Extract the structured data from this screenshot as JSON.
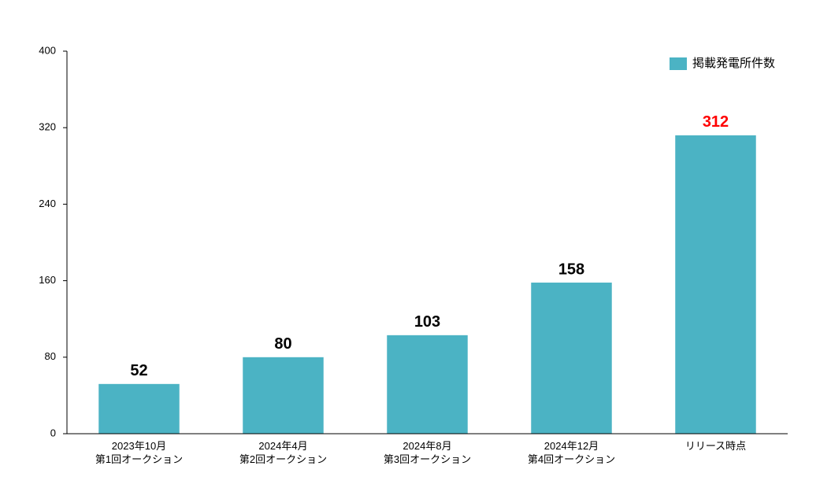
{
  "chart_data": {
    "type": "bar",
    "categories": [
      "2023年10月\n第1回オークション",
      "2024年4月\n第2回オークション",
      "2024年8月\n第3回オークション",
      "2024年12月\n第4回オークション",
      "リリース時点"
    ],
    "series": [
      {
        "name": "掲載発電所件数",
        "color": "#4bb3c4",
        "values": [
          52,
          80,
          103,
          158,
          312
        ]
      }
    ],
    "label_colors": [
      "#000000",
      "#000000",
      "#000000",
      "#000000",
      "#ff0000"
    ],
    "ylim": [
      0,
      400
    ],
    "yticks": [
      0,
      80,
      160,
      240,
      320,
      400
    ],
    "grid": false,
    "legend": "top-right"
  }
}
